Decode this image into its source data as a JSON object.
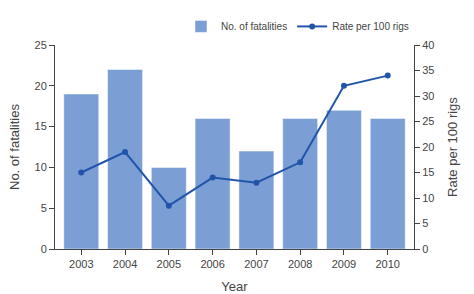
{
  "chart_data": {
    "type": "bar",
    "x": [
      2003,
      2004,
      2005,
      2006,
      2007,
      2008,
      2009,
      2010
    ],
    "xlabel": "Year",
    "ylabel": "No. of fatalities",
    "y2label": "Rate per 100 rigs",
    "xlim": [
      2002.4,
      2010.6
    ],
    "xticks": [
      2003,
      2004,
      2005,
      2006,
      2007,
      2008,
      2009,
      2010
    ],
    "ylim": [
      0,
      25
    ],
    "yticks": [
      0,
      5,
      10,
      15,
      20,
      25
    ],
    "y2lim": [
      0,
      40
    ],
    "y2ticks": [
      0,
      5,
      10,
      15,
      20,
      25,
      30,
      35,
      40
    ],
    "series": [
      {
        "name": "No. of fatalities",
        "type": "bar",
        "color": "#7b9fd4",
        "values": [
          19,
          22,
          10,
          16,
          12,
          16,
          17,
          16
        ]
      },
      {
        "name": "Rate per 100 rigs",
        "type": "line",
        "axis": "y2",
        "color": "#2255aa",
        "marker": "circle",
        "values": [
          15,
          19,
          8.5,
          14,
          13,
          17,
          32,
          34
        ]
      }
    ],
    "grid": false,
    "legend": "upper right"
  }
}
